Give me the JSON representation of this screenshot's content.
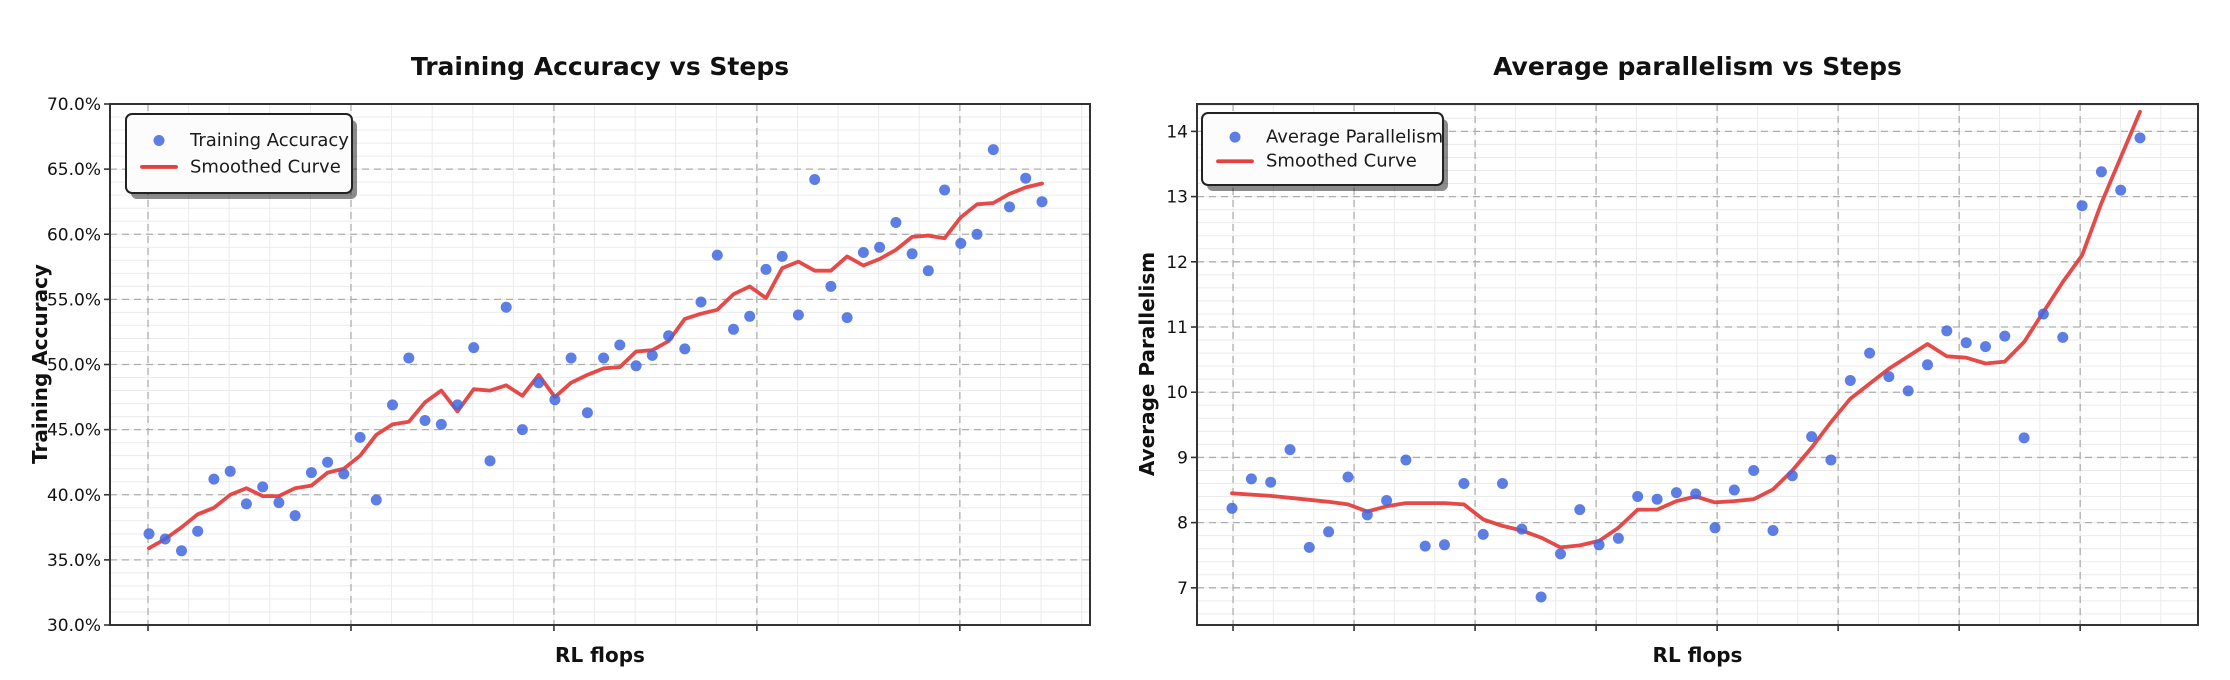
{
  "page": {
    "background": "#ffffff"
  },
  "chart_data": [
    {
      "type": "scatter",
      "title": "Training Accuracy vs Steps",
      "xlabel": "RL flops",
      "ylabel": "Training Accuracy",
      "x_tick_labels": [],
      "y_tick_labels": [
        "70.0%",
        "65.0%",
        "60.0%",
        "55.0%",
        "50.0%",
        "45.0%",
        "40.0%",
        "35.0%",
        "30.0%"
      ],
      "y_ticks": [
        70,
        65,
        60,
        55,
        50,
        45,
        40,
        35,
        30
      ],
      "ylim": [
        30,
        70
      ],
      "grid": true,
      "legend_position": "upper left",
      "colors": {
        "scatter": "#4169e1",
        "line": "#e5403e"
      },
      "series": [
        {
          "name": "Training Accuracy",
          "style": "scatter",
          "values": [
            37.0,
            36.6,
            35.7,
            37.2,
            41.2,
            41.8,
            39.3,
            40.6,
            39.4,
            38.4,
            41.7,
            42.5,
            41.6,
            44.4,
            39.6,
            46.9,
            50.5,
            45.7,
            45.4,
            46.9,
            51.3,
            42.6,
            54.4,
            45.0,
            48.6,
            47.3,
            50.5,
            46.3,
            50.5,
            51.5,
            49.9,
            50.7,
            52.2,
            51.2,
            54.8,
            58.4,
            52.7,
            53.7,
            57.3,
            58.3,
            53.8,
            64.2,
            56.0,
            53.6,
            58.6,
            59.0,
            60.9,
            58.5,
            57.2,
            63.4,
            59.3,
            60.0,
            66.5,
            62.1,
            64.3,
            62.5
          ]
        },
        {
          "name": "Smoothed Curve",
          "style": "line",
          "values": [
            35.9,
            36.6,
            37.5,
            38.5,
            39.0,
            40.0,
            40.5,
            39.9,
            39.9,
            40.5,
            40.7,
            41.7,
            42.0,
            43.0,
            44.6,
            45.4,
            45.6,
            47.1,
            48.0,
            46.4,
            48.1,
            48.0,
            48.4,
            47.6,
            49.2,
            47.5,
            48.6,
            49.2,
            49.7,
            49.8,
            51.0,
            51.1,
            51.8,
            53.5,
            53.9,
            54.2,
            55.4,
            56.0,
            55.1,
            57.4,
            57.9,
            57.2,
            57.2,
            58.3,
            57.6,
            58.1,
            58.8,
            59.8,
            59.9,
            59.7,
            61.3,
            62.3,
            62.4,
            63.1,
            63.6,
            63.9
          ]
        }
      ]
    },
    {
      "type": "scatter",
      "title": "Average parallelism vs Steps",
      "xlabel": "RL flops",
      "ylabel": "Average Parallelism",
      "x_tick_labels": [],
      "y_tick_labels": [
        "14",
        "13",
        "12",
        "11",
        "10",
        "9",
        "8",
        "7"
      ],
      "y_ticks": [
        14,
        13,
        12,
        11,
        10,
        9,
        8,
        7
      ],
      "ylim": [
        6.43,
        14.42
      ],
      "grid": true,
      "legend_position": "upper left",
      "colors": {
        "scatter": "#4169e1",
        "line": "#e5403e"
      },
      "series": [
        {
          "name": "Average Parallelism",
          "style": "scatter",
          "values": [
            8.22,
            8.67,
            8.62,
            9.12,
            7.62,
            7.86,
            8.7,
            8.12,
            8.34,
            8.96,
            7.64,
            7.66,
            8.6,
            7.82,
            8.6,
            7.9,
            6.86,
            7.52,
            8.2,
            7.66,
            7.76,
            8.4,
            8.36,
            8.46,
            8.44,
            7.92,
            8.5,
            8.8,
            7.88,
            8.72,
            9.32,
            8.96,
            10.18,
            10.6,
            10.24,
            10.02,
            10.42,
            10.94,
            10.76,
            10.7,
            10.86,
            9.3,
            11.2,
            10.84,
            12.86,
            13.38,
            13.1,
            13.9
          ]
        },
        {
          "name": "Smoothed Curve",
          "style": "line",
          "values": [
            8.45,
            8.43,
            8.41,
            8.38,
            8.35,
            8.32,
            8.28,
            8.17,
            8.25,
            8.3,
            8.3,
            8.3,
            8.28,
            8.05,
            7.95,
            7.88,
            7.77,
            7.62,
            7.65,
            7.72,
            7.92,
            8.2,
            8.2,
            8.33,
            8.4,
            8.31,
            8.33,
            8.36,
            8.51,
            8.8,
            9.15,
            9.54,
            9.9,
            10.13,
            10.36,
            10.55,
            10.74,
            10.55,
            10.53,
            10.44,
            10.47,
            10.77,
            11.23,
            11.69,
            12.1,
            12.9,
            13.6,
            14.3
          ]
        }
      ]
    }
  ]
}
